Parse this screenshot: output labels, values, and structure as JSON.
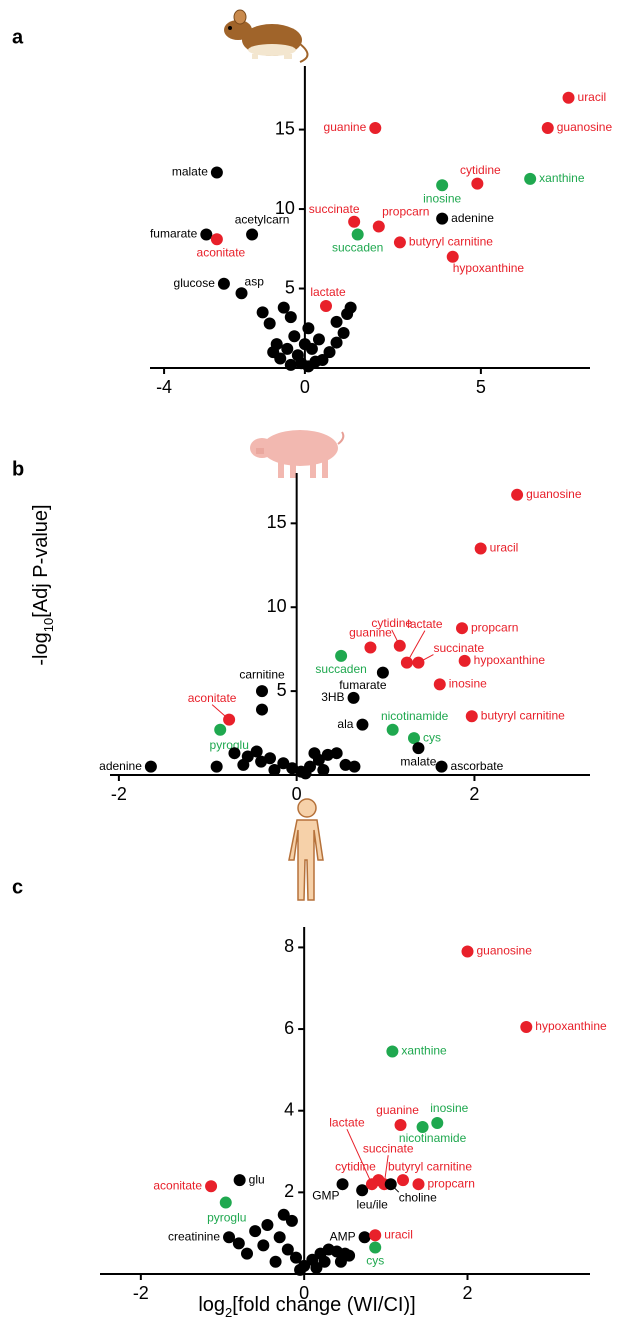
{
  "chart_data": [
    {
      "type": "scatter",
      "panel": "a",
      "xlim": [
        -4.4,
        8.1
      ],
      "ylim": [
        0,
        19
      ],
      "xticks": [
        -4,
        0,
        5
      ],
      "yticks": [
        5,
        10,
        15
      ],
      "points": {
        "x": [
          7.49,
          6.9,
          2.0,
          -2.5,
          4.9,
          6.4,
          3.9,
          3.9,
          1.4,
          2.1,
          1.5,
          -2.8,
          -1.5,
          -2.5,
          2.7,
          4.2,
          -2.3,
          -1.8,
          0.6,
          -0.6,
          -0.4,
          -1.2,
          -1.0,
          0.1,
          -0.3,
          0.4,
          0.9,
          1.1,
          1.2,
          1.3,
          -0.8,
          -0.5,
          -0.2,
          0.2,
          0.5,
          -0.1,
          0.1,
          -0.7,
          0.7,
          0.3,
          -0.4,
          0.0,
          -0.9,
          0.9
        ],
        "y": [
          17.0,
          15.1,
          15.1,
          12.3,
          11.6,
          11.9,
          11.5,
          9.4,
          9.2,
          8.9,
          8.4,
          8.4,
          8.4,
          8.1,
          7.9,
          7.0,
          5.3,
          4.7,
          3.9,
          3.8,
          3.2,
          3.5,
          2.8,
          2.5,
          2.0,
          1.8,
          2.9,
          2.2,
          3.4,
          3.8,
          1.5,
          1.2,
          0.8,
          1.2,
          0.5,
          0.3,
          0.1,
          0.6,
          1.0,
          0.4,
          0.2,
          1.5,
          1.0,
          1.6
        ],
        "labels": [
          "uracil",
          "guanosine",
          "guanine",
          "malate",
          "cytidine",
          "xanthine",
          "inosine",
          "adenine",
          "succinate",
          "propcarn",
          "succaden",
          "fumarate",
          "acetylcarn",
          "aconitate",
          "butyryl carnitine",
          "hypoxanthine",
          "glucose",
          "asp",
          "lactate",
          null,
          null,
          null,
          null,
          null,
          null,
          null,
          null,
          null,
          null,
          null,
          null,
          null,
          null,
          null,
          null,
          null,
          null,
          null,
          null,
          null,
          null,
          null,
          null,
          null
        ],
        "colors": [
          "#e8202a",
          "#e8202a",
          "#e8202a",
          "#000000",
          "#e8202a",
          "#1fa84f",
          "#1fa84f",
          "#000000",
          "#e8202a",
          "#e8202a",
          "#1fa84f",
          "#000000",
          "#000000",
          "#e8202a",
          "#e8202a",
          "#e8202a",
          "#000000",
          "#000000",
          "#e8202a",
          "#000000",
          "#000000",
          "#000000",
          "#000000",
          "#000000",
          "#000000",
          "#000000",
          "#000000",
          "#000000",
          "#000000",
          "#000000",
          "#000000",
          "#000000",
          "#000000",
          "#000000",
          "#000000",
          "#000000",
          "#000000",
          "#000000",
          "#000000",
          "#000000",
          "#000000",
          "#000000",
          "#000000",
          "#000000"
        ]
      }
    },
    {
      "type": "scatter",
      "panel": "b",
      "y_label": [
        "-log",
        "10",
        "[Adj P-value]"
      ],
      "xlim": [
        -2.1,
        3.3
      ],
      "ylim": [
        0,
        18
      ],
      "xticks": [
        -2,
        0,
        2
      ],
      "yticks": [
        5,
        10,
        15
      ],
      "points": {
        "x": [
          2.48,
          2.07,
          1.86,
          1.16,
          1.24,
          1.37,
          0.83,
          0.5,
          1.89,
          0.97,
          1.61,
          -0.39,
          0.64,
          -0.76,
          -0.86,
          1.97,
          0.74,
          1.08,
          1.32,
          1.37,
          1.63,
          -1.64,
          -0.39,
          -0.7,
          -0.55,
          -0.45,
          -0.3,
          -0.15,
          -0.05,
          0.05,
          0.15,
          0.25,
          0.35,
          0.45,
          0.55,
          -0.6,
          -0.9,
          -0.25,
          0.1,
          0.3,
          0.65,
          -0.4,
          0.2
        ],
        "y": [
          16.7,
          13.5,
          8.75,
          7.7,
          6.7,
          6.7,
          7.6,
          7.1,
          6.8,
          6.1,
          5.4,
          5.0,
          4.6,
          3.3,
          2.7,
          3.5,
          3.0,
          2.7,
          2.2,
          1.6,
          0.5,
          0.5,
          3.9,
          1.3,
          1.1,
          1.4,
          1.0,
          0.7,
          0.4,
          0.2,
          0.5,
          0.9,
          1.2,
          1.3,
          0.6,
          0.6,
          0.5,
          0.3,
          0.1,
          0.3,
          0.5,
          0.8,
          1.3
        ],
        "labels": [
          "guanosine",
          "uracil",
          "propcarn",
          "cytidine",
          "lactate",
          "succinate",
          "guanine",
          "succaden",
          "hypoxanthine",
          "fumarate",
          "inosine",
          "carnitine",
          "3HB",
          "aconitate",
          "pyroglu",
          "butyryl carnitine",
          "ala",
          "nicotinamide",
          "cys",
          "malate",
          "ascorbate",
          "adenine",
          null,
          null,
          null,
          null,
          null,
          null,
          null,
          null,
          null,
          null,
          null,
          null,
          null,
          null,
          null,
          null,
          null,
          null,
          null,
          null,
          null
        ],
        "colors": [
          "#e8202a",
          "#e8202a",
          "#e8202a",
          "#e8202a",
          "#e8202a",
          "#e8202a",
          "#e8202a",
          "#1fa84f",
          "#e8202a",
          "#000000",
          "#e8202a",
          "#000000",
          "#000000",
          "#e8202a",
          "#1fa84f",
          "#e8202a",
          "#000000",
          "#1fa84f",
          "#1fa84f",
          "#000000",
          "#000000",
          "#000000",
          "#000000",
          "#000000",
          "#000000",
          "#000000",
          "#000000",
          "#000000",
          "#000000",
          "#000000",
          "#000000",
          "#000000",
          "#000000",
          "#000000",
          "#000000",
          "#000000",
          "#000000",
          "#000000",
          "#000000",
          "#000000",
          "#000000",
          "#000000",
          "#000000"
        ]
      }
    },
    {
      "type": "scatter",
      "panel": "c",
      "x_label": [
        "log",
        "2",
        "[fold change (WI/CI)]"
      ],
      "xlim": [
        -2.5,
        3.5
      ],
      "ylim": [
        0,
        8.5
      ],
      "xticks": [
        -2,
        0,
        2
      ],
      "yticks": [
        2,
        4,
        6,
        8
      ],
      "points": {
        "x": [
          2.0,
          2.72,
          1.08,
          1.18,
          1.45,
          1.63,
          -1.14,
          -0.79,
          -0.96,
          0.91,
          0.47,
          0.71,
          0.83,
          0.98,
          1.06,
          1.21,
          1.4,
          -0.92,
          0.74,
          0.87,
          0.87,
          -0.6,
          -0.45,
          -0.5,
          -0.3,
          -0.2,
          -0.1,
          0.0,
          0.1,
          0.2,
          0.3,
          0.4,
          0.5,
          0.55,
          -0.7,
          -0.8,
          -0.35,
          0.15,
          0.25,
          -0.25,
          -0.15,
          0.45,
          -0.05
        ],
        "y": [
          7.9,
          6.05,
          5.45,
          3.65,
          3.6,
          3.7,
          2.15,
          2.3,
          1.75,
          2.3,
          2.2,
          2.05,
          2.2,
          2.2,
          2.2,
          2.3,
          2.2,
          0.9,
          0.9,
          0.95,
          0.65,
          1.05,
          1.2,
          0.7,
          0.9,
          0.6,
          0.4,
          0.2,
          0.35,
          0.5,
          0.6,
          0.55,
          0.5,
          0.45,
          0.5,
          0.75,
          0.3,
          0.15,
          0.3,
          1.45,
          1.3,
          0.3,
          0.1
        ],
        "labels": [
          "guanosine",
          "hypoxanthine",
          "xanthine",
          "guanine",
          "nicotinamide",
          "inosine",
          "aconitate",
          "glu",
          "pyroglu",
          "cytidine",
          "GMP",
          "leu/ile",
          "lactate",
          "succinate",
          "choline",
          "butyryl carnitine",
          "propcarn",
          "creatinine",
          "AMP",
          "uracil",
          "cys",
          null,
          null,
          null,
          null,
          null,
          null,
          null,
          null,
          null,
          null,
          null,
          null,
          null,
          null,
          null,
          null,
          null,
          null,
          null,
          null,
          null,
          null
        ],
        "colors": [
          "#e8202a",
          "#e8202a",
          "#1fa84f",
          "#e8202a",
          "#1fa84f",
          "#1fa84f",
          "#e8202a",
          "#000000",
          "#1fa84f",
          "#e8202a",
          "#000000",
          "#000000",
          "#e8202a",
          "#e8202a",
          "#000000",
          "#e8202a",
          "#e8202a",
          "#000000",
          "#000000",
          "#e8202a",
          "#1fa84f",
          "#000000",
          "#000000",
          "#000000",
          "#000000",
          "#000000",
          "#000000",
          "#000000",
          "#000000",
          "#000000",
          "#000000",
          "#000000",
          "#000000",
          "#000000",
          "#000000",
          "#000000",
          "#000000",
          "#000000",
          "#000000",
          "#000000",
          "#000000",
          "#000000",
          "#000000"
        ]
      }
    }
  ]
}
